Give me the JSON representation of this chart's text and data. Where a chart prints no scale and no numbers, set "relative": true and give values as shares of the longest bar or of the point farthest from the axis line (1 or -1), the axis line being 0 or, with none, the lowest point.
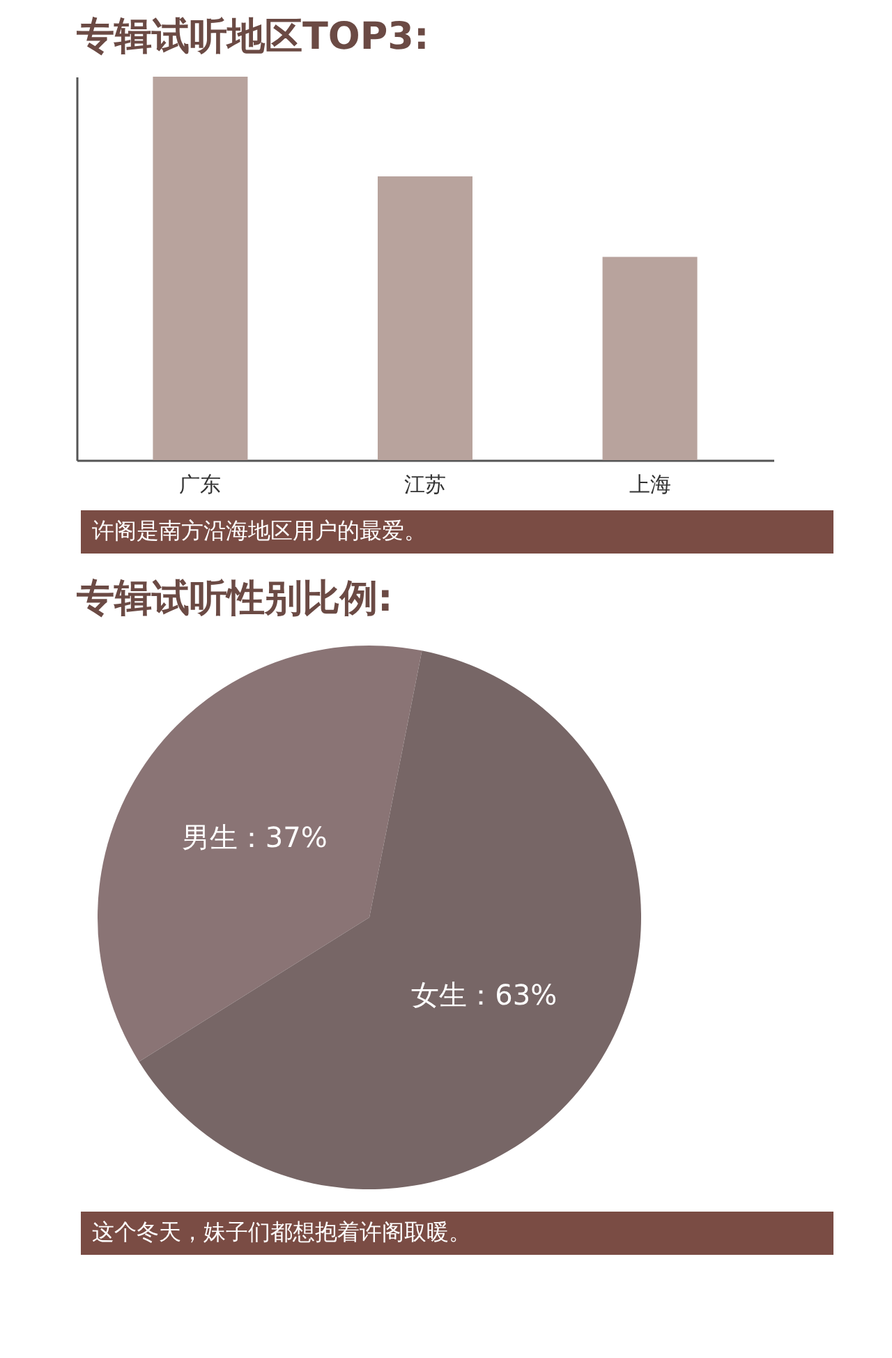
{
  "chart_data": [
    {
      "type": "bar",
      "title": "专辑试听地区TOP3:",
      "categories": [
        "广东",
        "江苏",
        "上海"
      ],
      "values": [
        1,
        0.74,
        0.53
      ],
      "color": "#b8a39d",
      "relative": true,
      "annotations": [
        "许阁是南方沿海地区用户的最爱。"
      ]
    },
    {
      "type": "pie",
      "title": "专辑试听性别比例:",
      "categories": [
        "男生",
        "女生"
      ],
      "values": [
        37,
        63
      ],
      "colors": [
        "#8a7475",
        "#776666"
      ],
      "value_labels": [
        "：37%",
        "：63%"
      ],
      "annotations": [
        "这个冬天，妹子们都想抱着许阁取暖。"
      ]
    }
  ]
}
